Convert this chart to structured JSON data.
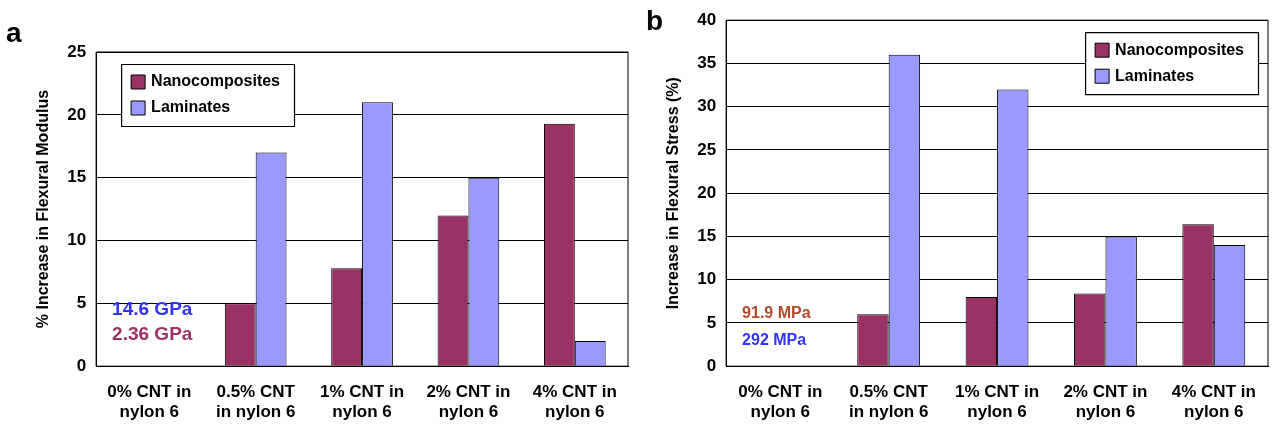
{
  "chart_data": [
    {
      "type": "bar",
      "ylabel": "% Increase in Flexural Modulus",
      "annotations": [
        "a",
        "14.6 GPa",
        "2.36 GPa"
      ],
      "categories": [
        "0% CNT in nylon 6",
        "0.5% CNT in nylon 6",
        "1% CNT in nylon 6",
        "2% CNT in nylon 6",
        "4% CNT in nylon 6"
      ],
      "series": [
        {
          "name": "Nanocomposites",
          "color": "#993366",
          "values": [
            null,
            5,
            7.8,
            12,
            19.3
          ]
        },
        {
          "name": "Laminates",
          "color": "#9999ff",
          "values": [
            null,
            17,
            21,
            15,
            2
          ]
        }
      ],
      "ylim": [
        0,
        25
      ],
      "yticks": [
        0,
        5,
        10,
        15,
        20,
        25
      ],
      "grid": "y",
      "legend": "top left"
    },
    {
      "type": "bar",
      "ylabel": "Increase in Flexural Stress (%)",
      "annotations": [
        "b",
        "91.9 MPa",
        "292 MPa"
      ],
      "categories": [
        "0% CNT in nylon 6",
        "0.5% CNT in nylon 6",
        "1% CNT in nylon 6",
        "2% CNT in nylon 6",
        "4% CNT in nylon 6"
      ],
      "series": [
        {
          "name": "Nanocomposites",
          "color": "#993366",
          "values": [
            null,
            6,
            8,
            8.4,
            16.4
          ]
        },
        {
          "name": "Laminates",
          "color": "#9999ff",
          "values": [
            null,
            36,
            32,
            15,
            14
          ]
        }
      ],
      "ylim": [
        0,
        40
      ],
      "yticks": [
        0,
        5,
        10,
        15,
        20,
        25,
        30,
        35,
        40
      ],
      "grid": "y",
      "legend": "top right"
    }
  ]
}
